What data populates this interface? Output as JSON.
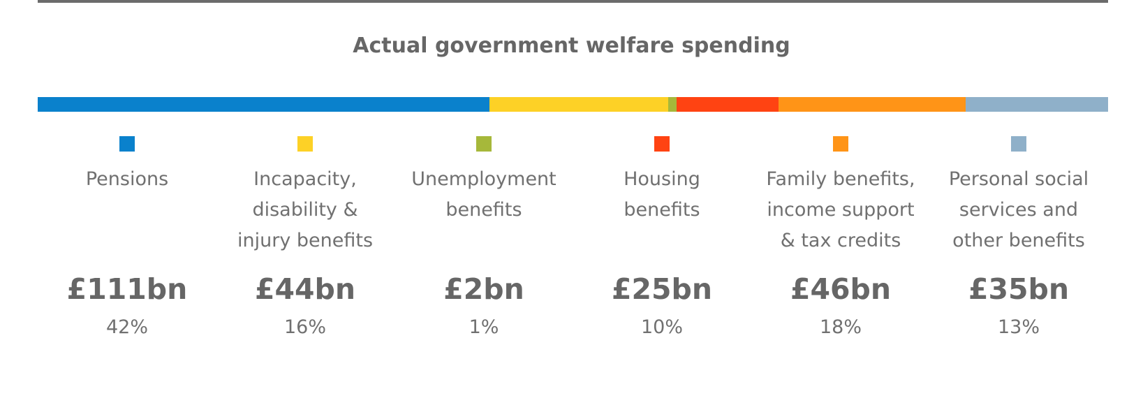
{
  "chart_data": {
    "type": "bar",
    "title": "Actual government welfare spending",
    "categories": [
      [
        "Pensions"
      ],
      [
        "Incapacity,",
        "disability &",
        "injury benefits"
      ],
      [
        "Unemployment",
        "benefits"
      ],
      [
        "Housing",
        "benefits"
      ],
      [
        "Family benefits,",
        "income support",
        "& tax credits"
      ],
      [
        "Personal social",
        "services and",
        "other benefits"
      ]
    ],
    "values": [
      111,
      44,
      2,
      25,
      46,
      35
    ],
    "value_labels": [
      "£111bn",
      "£44bn",
      "£2bn",
      "£25bn",
      "£46bn",
      "£35bn"
    ],
    "percent_labels": [
      "42%",
      "16%",
      "1%",
      "10%",
      "18%",
      "13%"
    ],
    "colors": [
      "#0a81cc",
      "#fdd126",
      "#a6b83a",
      "#ff4312",
      "#ff9417",
      "#8fb0c9"
    ],
    "stacked": true,
    "orientation": "horizontal",
    "grid": false
  }
}
